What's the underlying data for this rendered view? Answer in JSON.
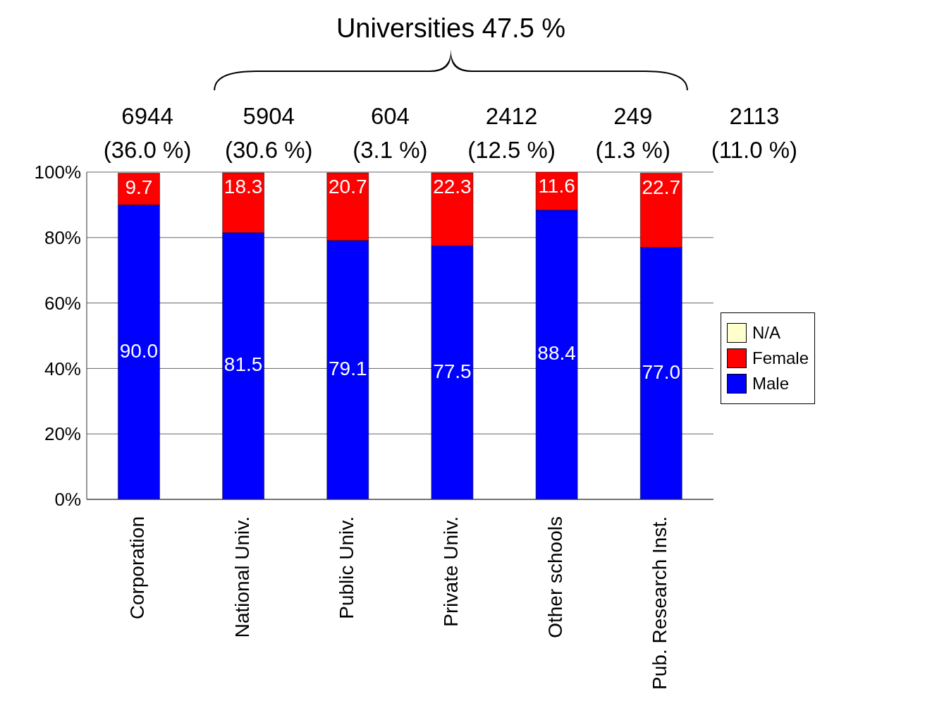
{
  "chart_data": {
    "type": "bar",
    "stacked": true,
    "categories": [
      "Corporation",
      "National Univ.",
      "Public Univ.",
      "Private Univ.",
      "Other schools",
      "Pub. Research Inst."
    ],
    "series": [
      {
        "name": "Male",
        "color": "#0000ff",
        "values": [
          90.0,
          81.5,
          79.1,
          77.5,
          88.4,
          77.0
        ],
        "value_labels": [
          "90.0",
          "81.5",
          "79.1",
          "77.5",
          "88.4",
          "77.0"
        ]
      },
      {
        "name": "Female",
        "color": "#ff0000",
        "values": [
          9.7,
          18.3,
          20.7,
          22.3,
          11.6,
          22.7
        ],
        "value_labels": [
          "9.7",
          "18.3",
          "20.7",
          "22.3",
          "11.6",
          "22.7"
        ]
      },
      {
        "name": "N/A",
        "color": "#ffffcc",
        "values": [
          null,
          null,
          null,
          null,
          null,
          null
        ]
      }
    ],
    "ylim": [
      0,
      100
    ],
    "yticks": [
      {
        "value": 0,
        "label": "0%"
      },
      {
        "value": 20,
        "label": "20%"
      },
      {
        "value": 40,
        "label": "40%"
      },
      {
        "value": 60,
        "label": "60%"
      },
      {
        "value": 80,
        "label": "80%"
      },
      {
        "value": 100,
        "label": "100%"
      }
    ],
    "grid": "y",
    "legend": "right",
    "annotations": [
      "6944\n(36.0 %)",
      "5904\n(30.6 %)",
      "604\n(3.1 %)",
      "2412\n(12.5 %)",
      "249\n(1.3 %)",
      "2113\n(11.0 %)",
      "Universities 47.5 %"
    ]
  }
}
